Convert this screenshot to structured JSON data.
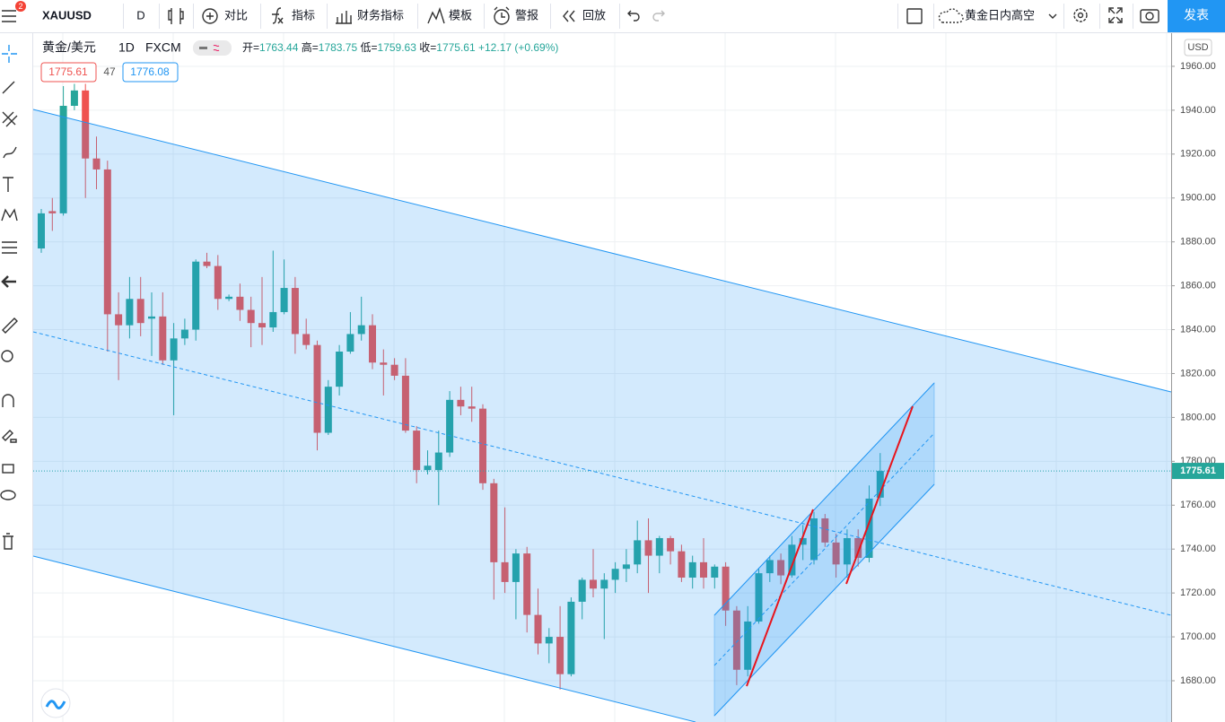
{
  "toolbar": {
    "badge": "2",
    "symbol": "XAUUSD",
    "interval": "D",
    "compare": "对比",
    "indicators": "指标",
    "financials": "财务指标",
    "templates": "模板",
    "alerts": "警报",
    "replay": "回放",
    "layout_name": "黄金日内高空",
    "publish": "发表"
  },
  "legend": {
    "symbol": "黄金/美元",
    "interval": "1D",
    "source": "FXCM",
    "open": {
      "label": "开=",
      "value": "1763.44"
    },
    "high": {
      "label": "高=",
      "value": "1783.75"
    },
    "low": {
      "label": "低=",
      "value": "1759.63"
    },
    "close": {
      "label": "收=",
      "value": "1775.61"
    },
    "change": "+12.17 (+0.69%)",
    "bid": "1775.61",
    "spread": "47",
    "ask": "1776.08"
  },
  "chart_data": {
    "type": "candlestick",
    "currency": "USD",
    "open": [
      1877,
      1894,
      1893,
      1942,
      1949,
      1918,
      1913,
      1847,
      1842,
      1854,
      1845,
      1846,
      1826,
      1836,
      1840,
      1871,
      1869,
      1854,
      1855,
      1849,
      1843,
      1841,
      1848,
      1859,
      1838,
      1833,
      1793,
      1814,
      1830,
      1838,
      1842,
      1825,
      1824,
      1819,
      1794,
      1776,
      1776,
      1784,
      1808,
      1805,
      1804,
      1770,
      1734,
      1725,
      1738,
      1710,
      1697,
      1700,
      1683,
      1716,
      1726,
      1722,
      1726,
      1731,
      1733,
      1744,
      1737,
      1745,
      1739,
      1727,
      1734,
      1727,
      1732,
      1712,
      1685,
      1707,
      1729,
      1735,
      1728,
      1742,
      1735,
      1754,
      1743,
      1733,
      1745,
      1736,
      1763.44
    ],
    "high": [
      1895,
      1900,
      1951,
      1952,
      1952,
      1928,
      1917,
      1857,
      1864,
      1864,
      1857,
      1857,
      1843,
      1845,
      1872,
      1875,
      1874,
      1856,
      1861,
      1855,
      1864,
      1876,
      1872,
      1864,
      1845,
      1835,
      1817,
      1833,
      1848,
      1855,
      1847,
      1831,
      1827,
      1827,
      1796,
      1785,
      1794,
      1812,
      1814,
      1814,
      1806,
      1772,
      1759,
      1740,
      1741,
      1722,
      1704,
      1714,
      1718,
      1727,
      1740,
      1729,
      1734,
      1740,
      1753,
      1754,
      1746,
      1746,
      1742,
      1737,
      1745,
      1733,
      1734,
      1714,
      1714,
      1731,
      1737,
      1738,
      1746,
      1751,
      1757,
      1756,
      1747,
      1749,
      1749,
      1769,
      1783.75
    ],
    "low": [
      1875,
      1885,
      1892,
      1940,
      1900,
      1904,
      1830,
      1817,
      1836,
      1837,
      1828,
      1824,
      1801,
      1833,
      1835,
      1868,
      1849,
      1853,
      1844,
      1832,
      1833,
      1839,
      1847,
      1829,
      1831,
      1785,
      1792,
      1810,
      1829,
      1835,
      1822,
      1810,
      1817,
      1793,
      1770,
      1774,
      1760,
      1782,
      1801,
      1798,
      1767,
      1717,
      1720,
      1708,
      1702,
      1692,
      1688,
      1676,
      1682,
      1708,
      1718,
      1699,
      1720,
      1725,
      1729,
      1720,
      1729,
      1733,
      1725,
      1722,
      1722,
      1722,
      1705,
      1678,
      1682,
      1706,
      1725,
      1724,
      1727,
      1735,
      1733,
      1741,
      1727,
      1727,
      1732,
      1734,
      1759.63
    ],
    "close": [
      1893,
      1893,
      1942,
      1949,
      1918,
      1913,
      1847,
      1842,
      1854,
      1843,
      1846,
      1826,
      1836,
      1840,
      1871,
      1869,
      1854,
      1855,
      1849,
      1843,
      1841,
      1848,
      1859,
      1838,
      1833,
      1793,
      1814,
      1830,
      1838,
      1842,
      1825,
      1824,
      1819,
      1794,
      1776,
      1778,
      1784,
      1808,
      1805,
      1804,
      1770,
      1734,
      1725,
      1738,
      1710,
      1697,
      1700,
      1683,
      1716,
      1726,
      1722,
      1726,
      1731,
      1733,
      1744,
      1737,
      1745,
      1739,
      1727,
      1734,
      1727,
      1732,
      1712,
      1685,
      1707,
      1729,
      1735,
      1728,
      1742,
      1745,
      1754,
      1743,
      1733,
      1745,
      1736,
      1763,
      1775.61
    ],
    "up_color": "#26a69a",
    "down_color": "#ef5350",
    "ylim": [
      1661.2,
      1975.1
    ],
    "yticks": [
      {
        "value": 1680,
        "label": "1680.00"
      },
      {
        "value": 1700,
        "label": "1700.00"
      },
      {
        "value": 1720,
        "label": "1720.00"
      },
      {
        "value": 1740,
        "label": "1740.00"
      },
      {
        "value": 1760,
        "label": "1760.00"
      },
      {
        "value": 1780,
        "label": "1780.00"
      },
      {
        "value": 1800,
        "label": "1800.00"
      },
      {
        "value": 1820,
        "label": "1820.00"
      },
      {
        "value": 1840,
        "label": "1840.00"
      },
      {
        "value": 1860,
        "label": "1860.00"
      },
      {
        "value": 1880,
        "label": "1880.00"
      },
      {
        "value": 1900,
        "label": "1900.00"
      },
      {
        "value": 1920,
        "label": "1920.00"
      },
      {
        "value": 1940,
        "label": "1940.00"
      },
      {
        "value": 1960,
        "label": "1960.00"
      }
    ],
    "grid": true
  }
}
